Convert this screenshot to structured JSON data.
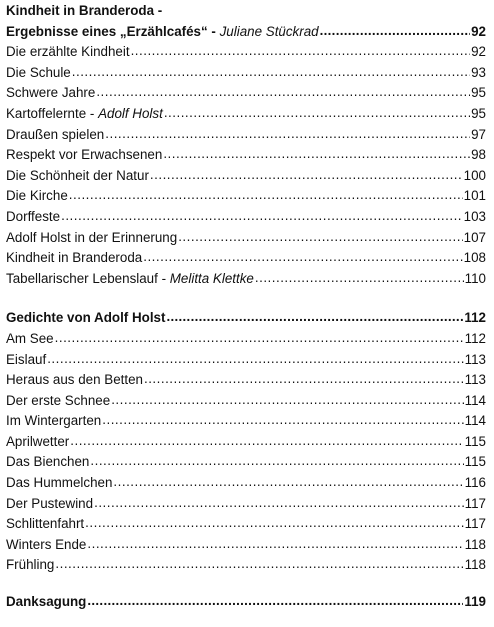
{
  "sections": [
    {
      "heading": "Kindheit in Branderoda -",
      "entries": [
        {
          "title": "Ergebnisse eines „Erzählcafés“ - ",
          "author": "Juliane Stückrad",
          "page": "92",
          "bold": true
        },
        {
          "title": "Die erzählte Kindheit",
          "author": "",
          "page": "92"
        },
        {
          "title": "Die Schule",
          "author": "",
          "page": "93"
        },
        {
          "title": "Schwere Jahre",
          "author": "",
          "page": "95"
        },
        {
          "title": "Kartoffelernte - ",
          "author": "Adolf Holst",
          "page": "95"
        },
        {
          "title": "Draußen spielen",
          "author": "",
          "page": "97"
        },
        {
          "title": "Respekt vor Erwachsenen",
          "author": "",
          "page": "98"
        },
        {
          "title": "Die Schönheit der Natur",
          "author": "",
          "page": "100"
        },
        {
          "title": "Die Kirche",
          "author": "",
          "page": "101"
        },
        {
          "title": "Dorffeste",
          "author": "",
          "page": "103"
        },
        {
          "title": "Adolf Holst in der Erinnerung",
          "author": "",
          "page": "107"
        },
        {
          "title": "Kindheit in Branderoda",
          "author": "",
          "page": "108"
        },
        {
          "title": "Tabellarischer Lebenslauf - ",
          "author": "Melitta Klettke",
          "page": "110"
        }
      ]
    },
    {
      "heading": "",
      "entries": [
        {
          "title": "Gedichte von Adolf Holst",
          "author": "",
          "page": "112",
          "bold": true
        },
        {
          "title": "Am See",
          "author": "",
          "page": "112"
        },
        {
          "title": "Eislauf",
          "author": "",
          "page": "113"
        },
        {
          "title": "Heraus aus den Betten",
          "author": "",
          "page": "113"
        },
        {
          "title": "Der erste Schnee",
          "author": "",
          "page": "114"
        },
        {
          "title": "Im Wintergarten",
          "author": "",
          "page": "114"
        },
        {
          "title": "Aprilwetter",
          "author": "",
          "page": "115"
        },
        {
          "title": "Das Bienchen",
          "author": "",
          "page": "115"
        },
        {
          "title": "Das Hummelchen",
          "author": "",
          "page": "116"
        },
        {
          "title": "Der Pustewind",
          "author": "",
          "page": "117"
        },
        {
          "title": "Schlittenfahrt",
          "author": "",
          "page": "117"
        },
        {
          "title": "Winters Ende",
          "author": "",
          "page": "118"
        },
        {
          "title": "Frühling",
          "author": "",
          "page": "118"
        }
      ]
    },
    {
      "heading": "",
      "entries": [
        {
          "title": "Danksagung",
          "author": "",
          "page": "119",
          "bold": true
        }
      ]
    }
  ]
}
